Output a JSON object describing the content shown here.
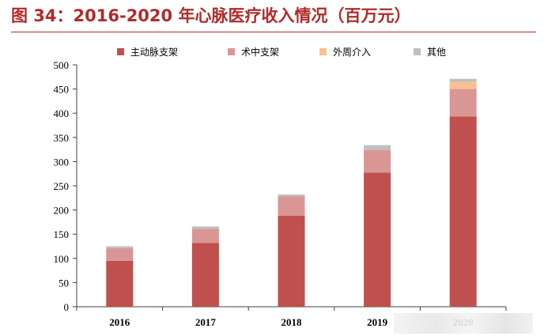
{
  "figure": {
    "title": "图 34：2016-2020 年心脉医疗收入情况（百万元）"
  },
  "chart_data": {
    "type": "bar",
    "stacked": true,
    "categories": [
      "2016",
      "2017",
      "2018",
      "2019",
      "2020"
    ],
    "series": [
      {
        "name": "主动脉支架",
        "color": "#c0504d",
        "values": [
          95,
          132,
          188,
          277,
          393
        ]
      },
      {
        "name": "术中支架",
        "color": "#da9694",
        "values": [
          26,
          29,
          40,
          47,
          57
        ]
      },
      {
        "name": "外周介入",
        "color": "#fac090",
        "values": [
          0,
          0,
          0,
          0,
          15
        ]
      },
      {
        "name": "其他",
        "color": "#bfbfbf",
        "values": [
          4,
          5,
          4,
          10,
          6
        ]
      }
    ],
    "ylim": [
      0,
      500
    ],
    "yticks": [
      0,
      50,
      100,
      150,
      200,
      250,
      300,
      350,
      400,
      450,
      500
    ],
    "legend_position": "top",
    "grid": false
  }
}
